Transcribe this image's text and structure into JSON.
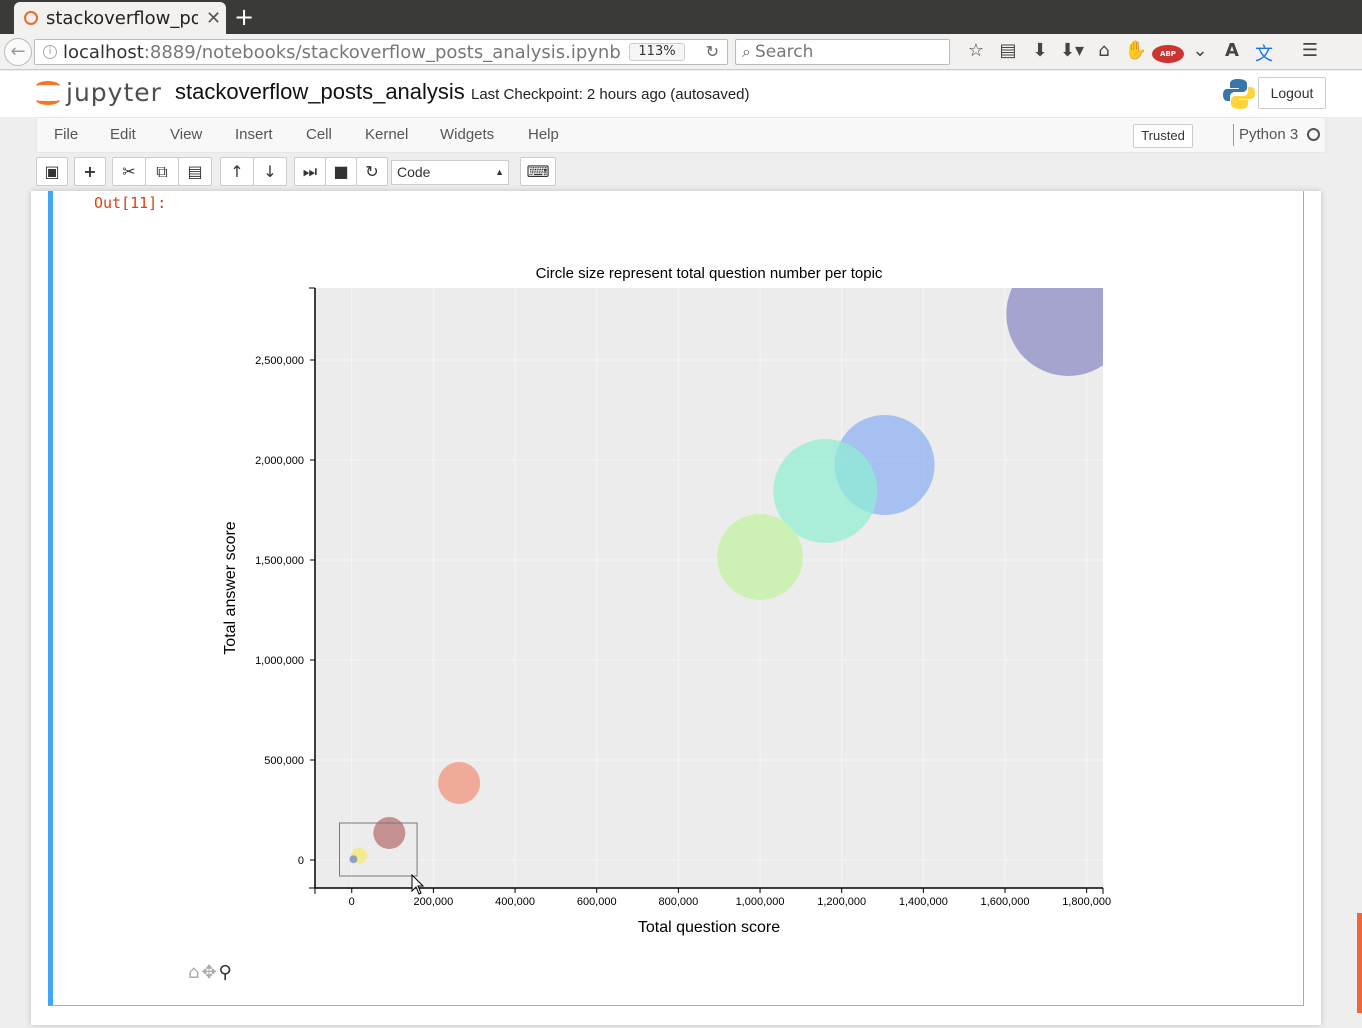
{
  "browser": {
    "tab_title": "stackoverflow_posts_analysis",
    "url_host": "localhost",
    "url_rest": ":8889/notebooks/stackoverflow_posts_analysis.ipynb",
    "zoom": "113%",
    "search_placeholder": "Search"
  },
  "header": {
    "logo_text": "jupyter",
    "notebook_name": "stackoverflow_posts_analysis",
    "checkpoint": "Last Checkpoint: 2 hours ago (autosaved)",
    "logout_label": "Logout"
  },
  "menu": {
    "items": [
      "File",
      "Edit",
      "View",
      "Insert",
      "Cell",
      "Kernel",
      "Widgets",
      "Help"
    ],
    "trusted_label": "Trusted",
    "kernel_name": "Python 3"
  },
  "toolbar": {
    "cell_type": "Code"
  },
  "output": {
    "prompt": "Out[11]:"
  },
  "chart_data": {
    "type": "scatter",
    "title": "Circle size represent total question number per topic",
    "xlabel": "Total question score",
    "ylabel": "Total answer score",
    "xlim": [
      -90000,
      1840000
    ],
    "ylim": [
      -140000,
      2860000
    ],
    "x_ticks": [
      0,
      200000,
      400000,
      600000,
      800000,
      1000000,
      1200000,
      1400000,
      1600000,
      1800000
    ],
    "x_tick_labels": [
      "0",
      "200,000",
      "400,000",
      "600,000",
      "800,000",
      "1,000,000",
      "1,200,000",
      "1,400,000",
      "1,600,000",
      "1,800,000"
    ],
    "y_ticks": [
      0,
      500000,
      1000000,
      1500000,
      2000000,
      2500000
    ],
    "y_tick_labels": [
      "0",
      "500,000",
      "1,000,000",
      "1,500,000",
      "2,000,000",
      "2,500,000"
    ],
    "grid": true,
    "points": [
      {
        "x": 1755000,
        "y": 2730000,
        "r": 62,
        "color": "#8c8cc4",
        "opacity": 0.75
      },
      {
        "x": 1305000,
        "y": 1975000,
        "r": 50,
        "color": "#8fb3f3",
        "opacity": 0.75
      },
      {
        "x": 1160000,
        "y": 1845000,
        "r": 52,
        "color": "#8ef0d3",
        "opacity": 0.7
      },
      {
        "x": 1000000,
        "y": 1515000,
        "r": 43,
        "color": "#c6f3a8",
        "opacity": 0.8
      },
      {
        "x": 263000,
        "y": 385000,
        "r": 21,
        "color": "#f28e76",
        "opacity": 0.7
      },
      {
        "x": 92000,
        "y": 135000,
        "r": 16,
        "color": "#b46a6a",
        "opacity": 0.7
      },
      {
        "x": 18000,
        "y": 22000,
        "r": 8,
        "color": "#f5ea7a",
        "opacity": 0.8
      },
      {
        "x": 4000,
        "y": 4000,
        "r": 4,
        "color": "#7f9cc6",
        "opacity": 0.9
      }
    ]
  }
}
